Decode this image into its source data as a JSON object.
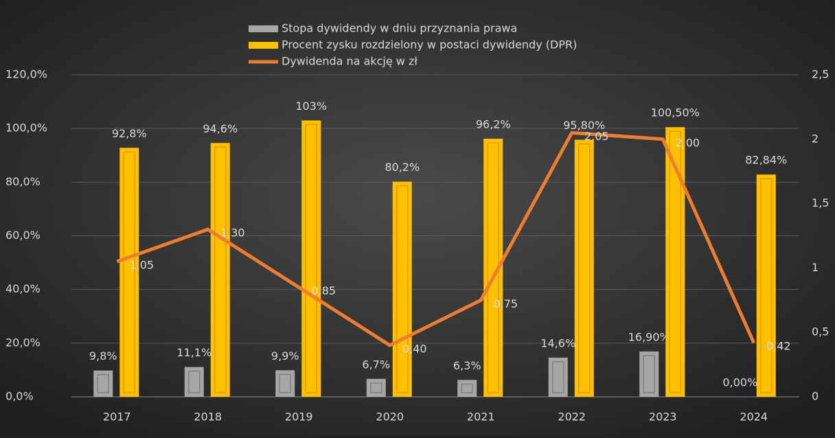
{
  "chart_data": {
    "type": "bar",
    "categories": [
      "2017",
      "2018",
      "2019",
      "2020",
      "2021",
      "2022",
      "2023",
      "2024"
    ],
    "series": [
      {
        "name": "Stopa dywidendy w dniu przyznania prawa",
        "type": "bar",
        "color": "#a6a6a6",
        "values": [
          9.8,
          11.1,
          9.9,
          6.7,
          6.3,
          14.6,
          16.9,
          0.0
        ],
        "value_labels": [
          "9,8%",
          "11,1%",
          "9,9%",
          "6,7%",
          "6,3%",
          "14,6%",
          "16,90%",
          "0,00%"
        ]
      },
      {
        "name": "Procent zysku rozdzielony w postaci dywidendy (DPR)",
        "type": "bar",
        "color": "#ffc000",
        "values": [
          92.8,
          94.6,
          103,
          80.2,
          96.2,
          95.8,
          100.5,
          82.84
        ],
        "value_labels": [
          "92,8%",
          "94,6%",
          "103%",
          "80,2%",
          "96,2%",
          "95,80%",
          "100,50%",
          "82,84%"
        ]
      },
      {
        "name": "Dywidenda na akcję w zł",
        "type": "line",
        "axis": "y2",
        "color": "#ed7d31",
        "values": [
          1.05,
          1.3,
          0.85,
          0.4,
          0.75,
          2.05,
          2.0,
          0.42
        ],
        "value_labels": [
          "1,05",
          "1,30",
          "0,85",
          "0,40",
          "0,75",
          "2,05",
          "2,00",
          "0,42"
        ]
      }
    ],
    "ylim": [
      0,
      120
    ],
    "yticks": [
      {
        "value": 0,
        "label": "0,0%"
      },
      {
        "value": 20,
        "label": "20,0%"
      },
      {
        "value": 40,
        "label": "40,0%"
      },
      {
        "value": 60,
        "label": "60,0%"
      },
      {
        "value": 80,
        "label": "80,0%"
      },
      {
        "value": 100,
        "label": "100,0%"
      },
      {
        "value": 120,
        "label": "120,0%"
      }
    ],
    "y2lim": [
      0,
      2.5
    ],
    "y2ticks": [
      0,
      {
        "value": 0.5,
        "label": "0,5"
      },
      1,
      {
        "value": 1.5,
        "label": "1,5"
      },
      2,
      {
        "value": 2.5,
        "label": "2,5"
      }
    ],
    "grid": true,
    "legend": "top"
  }
}
